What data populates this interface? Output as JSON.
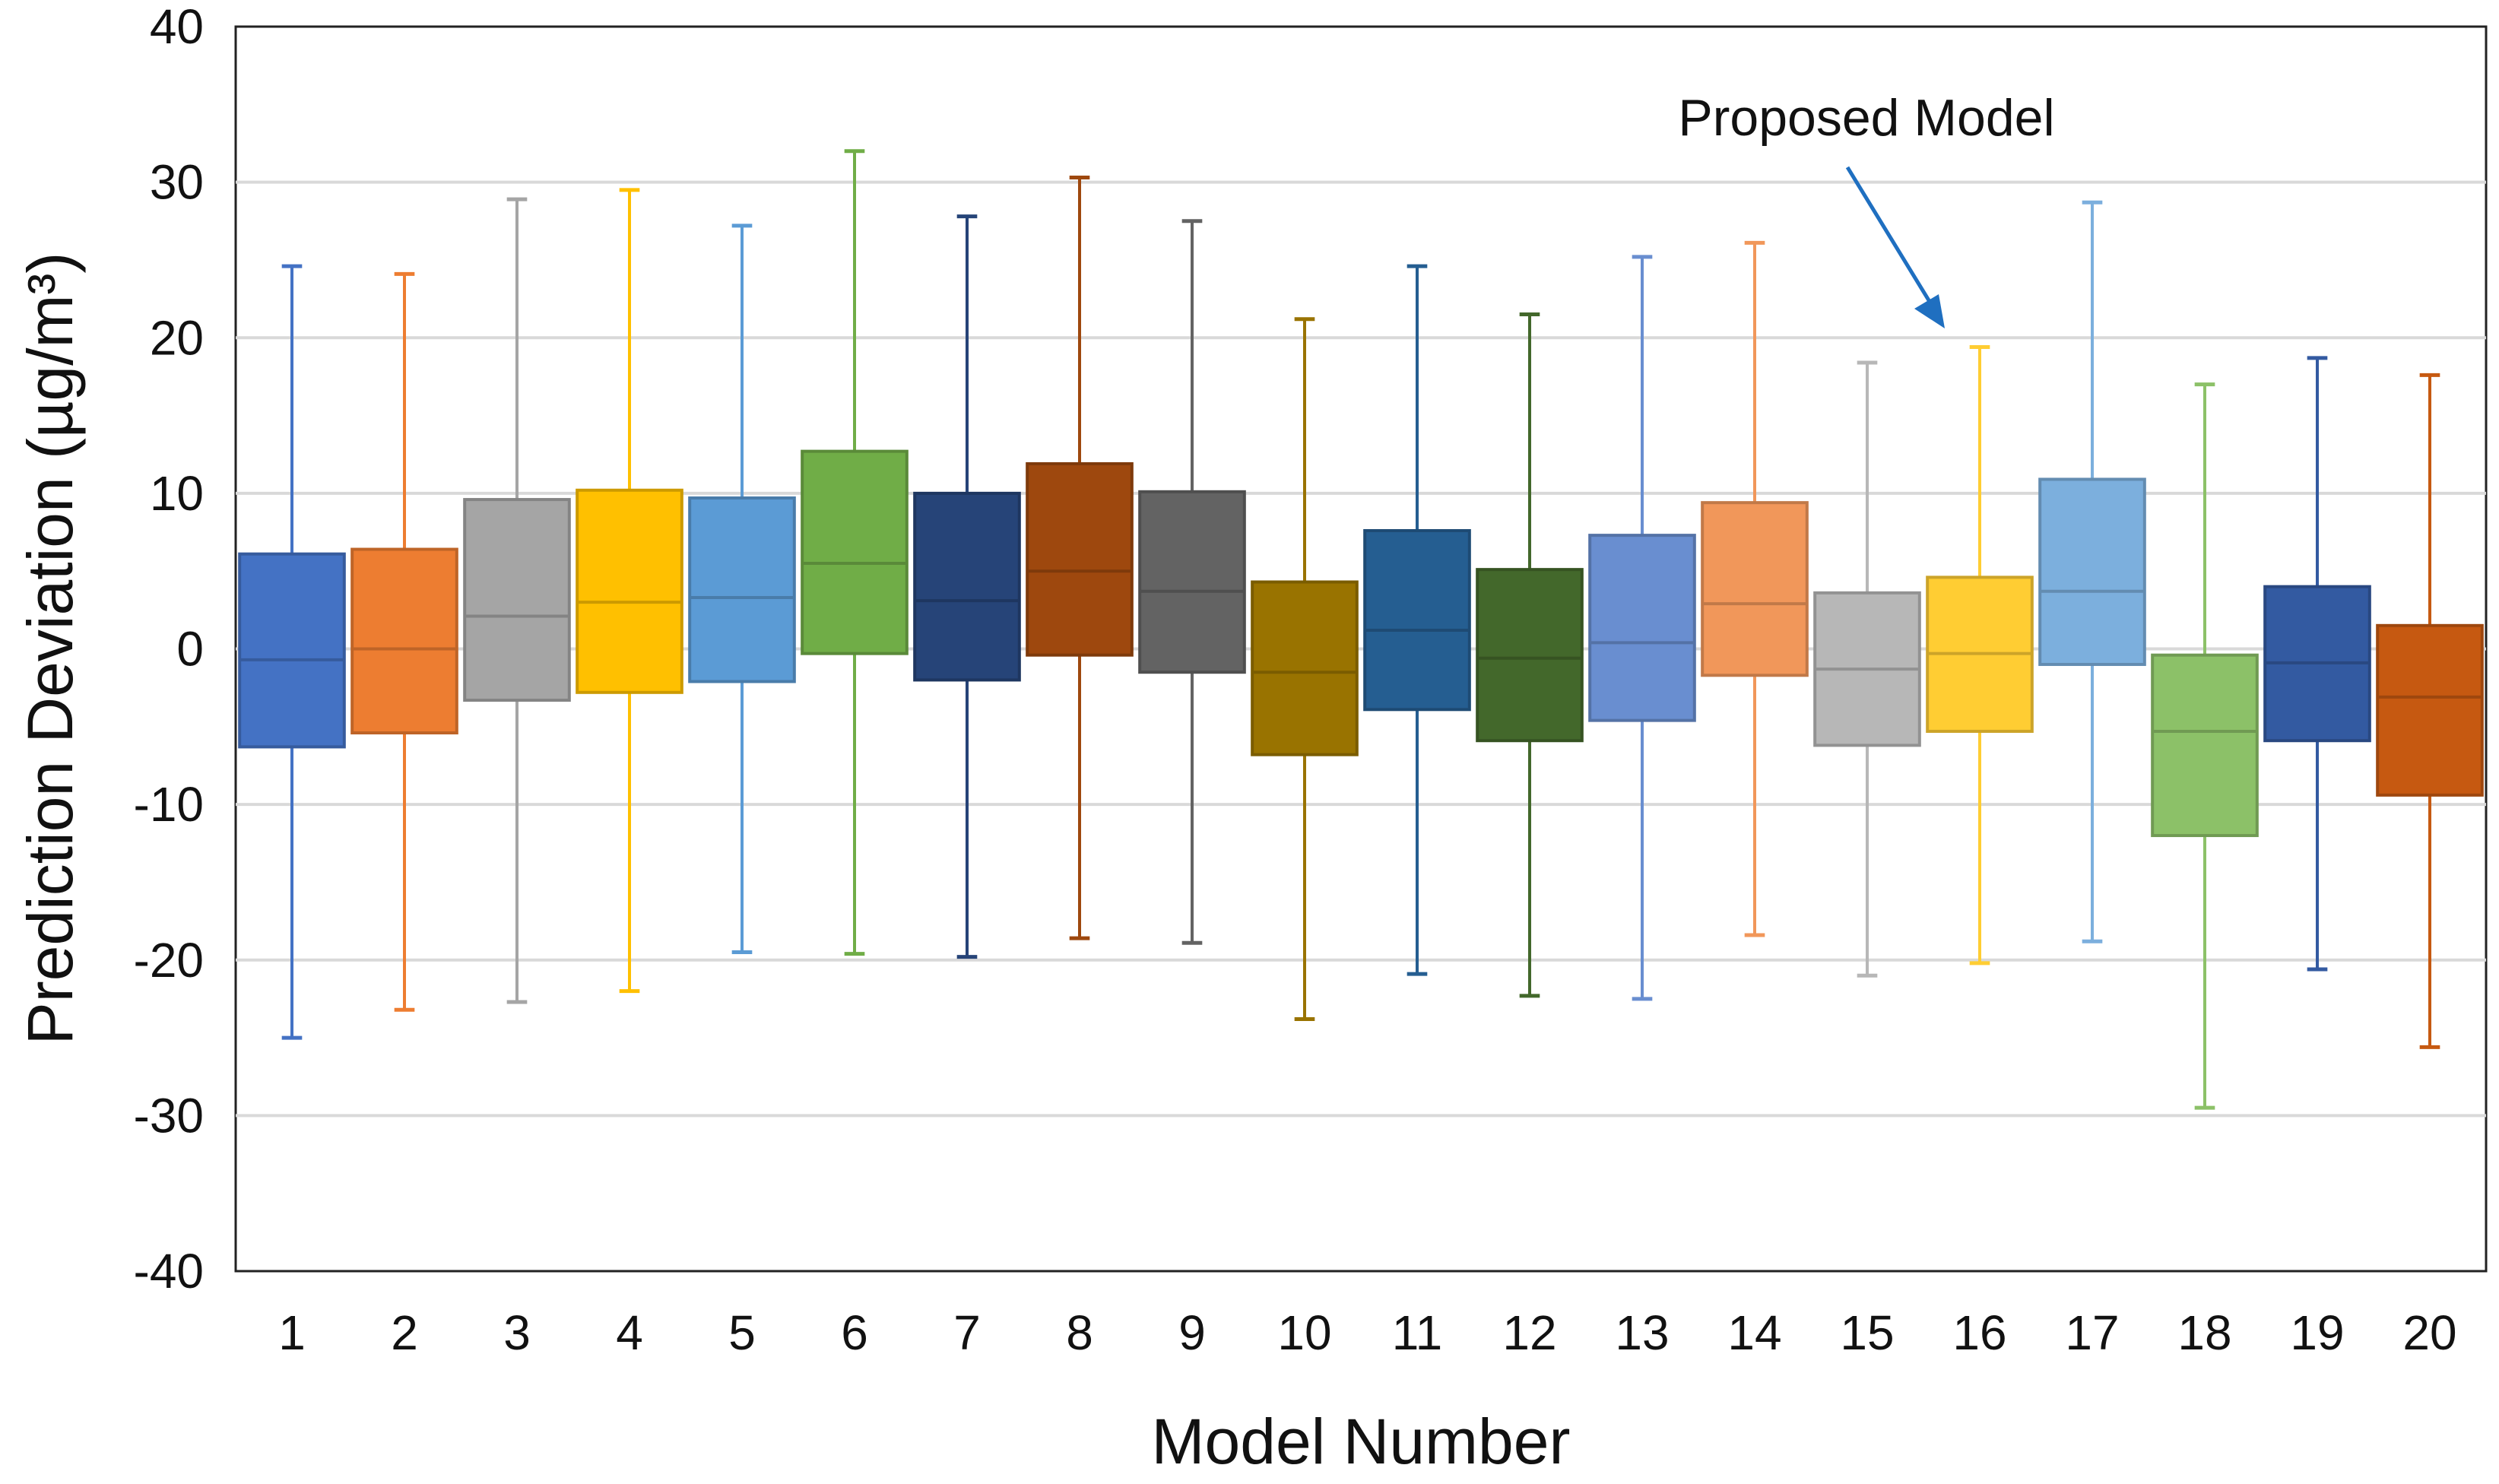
{
  "chart_data": {
    "type": "boxplot",
    "title": "",
    "xlabel": "Model Number",
    "ylabel": "Prediction Deviation (µg/m³)",
    "ylim": [
      -40,
      40
    ],
    "yticks": [
      40,
      30,
      20,
      10,
      0,
      -10,
      -20,
      -30,
      -40
    ],
    "ytick_labels": [
      "40",
      "30",
      "20",
      "10",
      "0",
      "-10",
      "-20",
      "-30",
      "-40"
    ],
    "grid": true,
    "annotation": {
      "text": "Proposed Model",
      "target_model": "16"
    },
    "series": [
      {
        "name": "1",
        "whisker_low": -25.0,
        "q1": -6.3,
        "median": -0.7,
        "q3": 6.1,
        "whisker_high": 24.6,
        "color": "#4472C4"
      },
      {
        "name": "2",
        "whisker_low": -23.2,
        "q1": -5.4,
        "median": 0.0,
        "q3": 6.4,
        "whisker_high": 24.1,
        "color": "#ED7D31"
      },
      {
        "name": "3",
        "whisker_low": -22.7,
        "q1": -3.3,
        "median": 2.1,
        "q3": 9.6,
        "whisker_high": 28.9,
        "color": "#A5A5A5"
      },
      {
        "name": "4",
        "whisker_low": -22.0,
        "q1": -2.8,
        "median": 3.0,
        "q3": 10.2,
        "whisker_high": 29.5,
        "color": "#FFC000"
      },
      {
        "name": "5",
        "whisker_low": -19.5,
        "q1": -2.1,
        "median": 3.3,
        "q3": 9.7,
        "whisker_high": 27.2,
        "color": "#5B9BD5"
      },
      {
        "name": "6",
        "whisker_low": -19.6,
        "q1": -0.3,
        "median": 5.5,
        "q3": 12.7,
        "whisker_high": 32.0,
        "color": "#70AD47"
      },
      {
        "name": "7",
        "whisker_low": -19.8,
        "q1": -2.0,
        "median": 3.1,
        "q3": 10.0,
        "whisker_high": 27.8,
        "color": "#264478"
      },
      {
        "name": "8",
        "whisker_low": -18.6,
        "q1": -0.4,
        "median": 5.0,
        "q3": 11.9,
        "whisker_high": 30.3,
        "color": "#9E480E"
      },
      {
        "name": "9",
        "whisker_low": -18.9,
        "q1": -1.5,
        "median": 3.7,
        "q3": 10.1,
        "whisker_high": 27.5,
        "color": "#636363"
      },
      {
        "name": "10",
        "whisker_low": -23.8,
        "q1": -6.8,
        "median": -1.5,
        "q3": 4.3,
        "whisker_high": 21.2,
        "color": "#997300"
      },
      {
        "name": "11",
        "whisker_low": -20.9,
        "q1": -3.9,
        "median": 1.2,
        "q3": 7.6,
        "whisker_high": 24.6,
        "color": "#255E91"
      },
      {
        "name": "12",
        "whisker_low": -22.3,
        "q1": -5.9,
        "median": -0.6,
        "q3": 5.1,
        "whisker_high": 21.5,
        "color": "#43682B"
      },
      {
        "name": "13",
        "whisker_low": -22.5,
        "q1": -4.6,
        "median": 0.4,
        "q3": 7.3,
        "whisker_high": 25.2,
        "color": "#698ED0"
      },
      {
        "name": "14",
        "whisker_low": -18.4,
        "q1": -1.7,
        "median": 2.9,
        "q3": 9.4,
        "whisker_high": 26.1,
        "color": "#F1975A"
      },
      {
        "name": "15",
        "whisker_low": -21.0,
        "q1": -6.2,
        "median": -1.3,
        "q3": 3.6,
        "whisker_high": 18.4,
        "color": "#B7B7B7"
      },
      {
        "name": "16",
        "whisker_low": -20.2,
        "q1": -5.3,
        "median": -0.3,
        "q3": 4.6,
        "whisker_high": 19.4,
        "color": "#FFCD33"
      },
      {
        "name": "17",
        "whisker_low": -18.8,
        "q1": -1.0,
        "median": 3.7,
        "q3": 10.9,
        "whisker_high": 28.7,
        "color": "#7CAFDD"
      },
      {
        "name": "18",
        "whisker_low": -29.5,
        "q1": -12.0,
        "median": -5.3,
        "q3": -0.4,
        "whisker_high": 17.0,
        "color": "#8CC168"
      },
      {
        "name": "19",
        "whisker_low": -20.6,
        "q1": -5.9,
        "median": -0.9,
        "q3": 4.0,
        "whisker_high": 18.7,
        "color": "#335AA1"
      },
      {
        "name": "20",
        "whisker_low": -25.6,
        "q1": -9.4,
        "median": -3.1,
        "q3": 1.5,
        "whisker_high": 17.6,
        "color": "#C65911"
      }
    ]
  }
}
